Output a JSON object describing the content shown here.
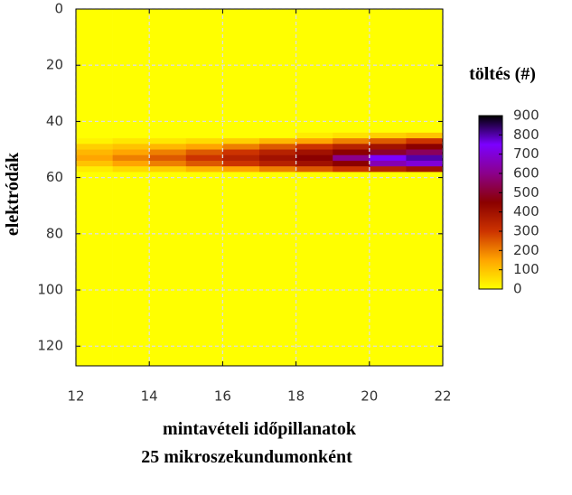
{
  "chart_data": {
    "type": "heatmap",
    "x_label": "mintavételi időpillanatok",
    "x_label_2": "25 mikroszekundumonként",
    "y_label": "elektródák",
    "colorbar_title": "töltés (#)",
    "x_edges": [
      12,
      13,
      14,
      15,
      16,
      17,
      18,
      19,
      20,
      21,
      22
    ],
    "y_edges": [
      0,
      44,
      46,
      48,
      50,
      52,
      54,
      56,
      58,
      127
    ],
    "z": [
      [
        0,
        0,
        0,
        0,
        0,
        0,
        0,
        0,
        0,
        0
      ],
      [
        0,
        0,
        0,
        0,
        0,
        0,
        30,
        50,
        80,
        100
      ],
      [
        20,
        40,
        40,
        60,
        80,
        120,
        150,
        200,
        250,
        300
      ],
      [
        80,
        100,
        120,
        150,
        200,
        250,
        300,
        350,
        400,
        450
      ],
      [
        120,
        150,
        200,
        250,
        300,
        350,
        400,
        450,
        500,
        550
      ],
      [
        150,
        200,
        250,
        300,
        350,
        400,
        450,
        600,
        750,
        800
      ],
      [
        100,
        150,
        200,
        250,
        300,
        350,
        400,
        450,
        650,
        700
      ],
      [
        30,
        60,
        80,
        120,
        150,
        200,
        250,
        300,
        350,
        400
      ],
      [
        0,
        0,
        0,
        0,
        0,
        0,
        0,
        0,
        0,
        0
      ]
    ],
    "xlim": [
      12,
      22
    ],
    "xticks": [
      12,
      14,
      16,
      18,
      20,
      22
    ],
    "ylim": [
      0,
      127
    ],
    "yticks": [
      0,
      20,
      40,
      60,
      80,
      100,
      120
    ],
    "y_inverted": true,
    "grid": true,
    "clim": [
      0,
      900
    ],
    "cticks": [
      0,
      100,
      200,
      300,
      400,
      500,
      600,
      700,
      800,
      900
    ],
    "colorscale": [
      "#ffff00",
      "#ffa500",
      "#cc3300",
      "#8b0000",
      "#8b008b",
      "#7b00ff",
      "#000000"
    ]
  }
}
